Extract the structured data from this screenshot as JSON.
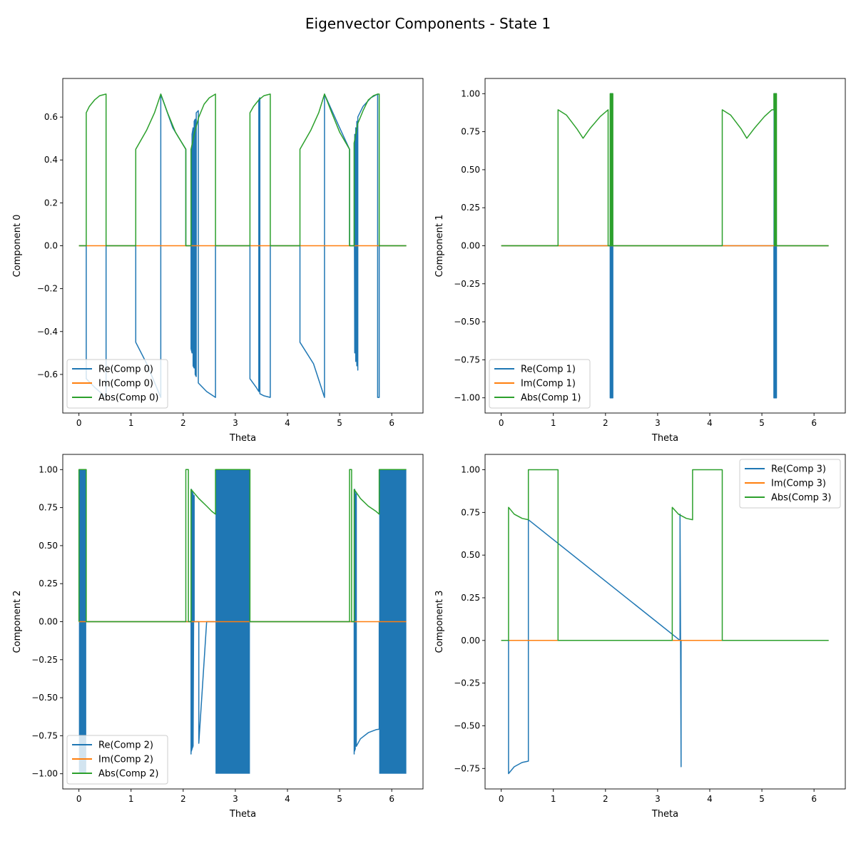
{
  "suptitle": "Eigenvector Components - State 1",
  "colors": {
    "re": "#1f77b4",
    "im": "#ff7f0e",
    "abs": "#2ca02c"
  },
  "chart_data": [
    {
      "type": "line",
      "xlabel": "Theta",
      "ylabel": "Component 0",
      "xlim": [
        -0.31,
        6.6
      ],
      "ylim": [
        -0.78,
        0.78
      ],
      "xticks": [
        0,
        1,
        2,
        3,
        4,
        5,
        6
      ],
      "yticks": [
        -0.6,
        -0.4,
        -0.2,
        0.0,
        0.2,
        0.4,
        0.6
      ],
      "ytick_labels": [
        "−0.6",
        "−0.4",
        "−0.2",
        "0.0",
        "0.2",
        "0.4",
        "0.6"
      ],
      "legend": "lower-left",
      "series": [
        {
          "name": "Re(Comp 0)",
          "color_key": "re",
          "x": [
            0,
            0.14,
            0.14,
            0.3,
            0.52,
            0.52,
            1.09,
            1.09,
            1.3,
            1.57,
            1.57,
            1.8,
            2.05,
            2.05,
            2.15,
            2.15,
            2.15,
            2.17,
            2.17,
            2.19,
            2.19,
            2.21,
            2.21,
            2.23,
            2.23,
            2.25,
            2.25,
            2.29,
            2.29,
            2.45,
            2.62,
            2.62,
            3.28,
            3.28,
            3.4,
            3.45,
            3.45,
            3.47,
            3.47,
            3.55,
            3.67,
            3.67,
            4.24,
            4.24,
            4.5,
            4.71,
            4.71,
            5.0,
            5.19,
            5.19,
            5.28,
            5.28,
            5.29,
            5.29,
            5.31,
            5.31,
            5.33,
            5.33,
            5.35,
            5.35,
            5.45,
            5.6,
            5.73,
            5.73,
            5.76,
            5.76,
            6.28
          ],
          "y": [
            0,
            0,
            -0.62,
            -0.66,
            -0.707,
            0,
            0,
            -0.45,
            -0.55,
            -0.707,
            0.707,
            0.55,
            0.45,
            0,
            0,
            0.45,
            -0.48,
            -0.5,
            0.52,
            0.55,
            -0.56,
            -0.57,
            0.58,
            0.59,
            -0.6,
            -0.61,
            0.62,
            0.63,
            -0.64,
            -0.68,
            -0.707,
            0,
            0,
            -0.62,
            -0.66,
            -0.68,
            0.68,
            0.69,
            -0.69,
            -0.7,
            -0.707,
            0,
            0,
            -0.45,
            -0.55,
            -0.707,
            0.707,
            0.55,
            0.45,
            0,
            0,
            0.48,
            -0.5,
            0.52,
            -0.54,
            0.55,
            -0.56,
            0.58,
            -0.58,
            0.6,
            0.65,
            0.69,
            0.707,
            -0.707,
            -0.707,
            0,
            0
          ]
        },
        {
          "name": "Im(Comp 0)",
          "color_key": "im",
          "x": [
            0,
            6.28
          ],
          "y": [
            0,
            0
          ]
        },
        {
          "name": "Abs(Comp 0)",
          "color_key": "abs",
          "x": [
            0,
            0.14,
            0.14,
            0.2,
            0.3,
            0.4,
            0.52,
            0.52,
            1.09,
            1.09,
            1.3,
            1.45,
            1.57,
            1.7,
            1.85,
            2.05,
            2.05,
            2.15,
            2.15,
            2.22,
            2.3,
            2.4,
            2.5,
            2.62,
            2.62,
            3.28,
            3.28,
            3.35,
            3.45,
            3.55,
            3.67,
            3.67,
            4.24,
            4.24,
            4.45,
            4.6,
            4.71,
            4.85,
            5.0,
            5.19,
            5.19,
            5.28,
            5.28,
            5.35,
            5.45,
            5.55,
            5.65,
            5.73,
            5.76,
            5.76,
            6.28
          ],
          "y": [
            0,
            0,
            0.62,
            0.65,
            0.68,
            0.7,
            0.707,
            0,
            0,
            0.45,
            0.54,
            0.62,
            0.707,
            0.62,
            0.53,
            0.45,
            0,
            0,
            0.45,
            0.53,
            0.6,
            0.66,
            0.69,
            0.707,
            0,
            0,
            0.62,
            0.65,
            0.68,
            0.7,
            0.707,
            0,
            0,
            0.45,
            0.54,
            0.62,
            0.707,
            0.62,
            0.53,
            0.45,
            0,
            0,
            0.48,
            0.57,
            0.63,
            0.68,
            0.7,
            0.707,
            0.707,
            0,
            0
          ]
        }
      ]
    },
    {
      "type": "line",
      "xlabel": "Theta",
      "ylabel": "Component 1",
      "xlim": [
        -0.31,
        6.6
      ],
      "ylim": [
        -1.1,
        1.1
      ],
      "xticks": [
        0,
        1,
        2,
        3,
        4,
        5,
        6
      ],
      "yticks": [
        -1.0,
        -0.75,
        -0.5,
        -0.25,
        0.0,
        0.25,
        0.5,
        0.75,
        1.0
      ],
      "ytick_labels": [
        "−1.00",
        "−0.75",
        "−0.50",
        "−0.25",
        "0.00",
        "0.25",
        "0.50",
        "0.75",
        "1.00"
      ],
      "legend": "lower-left",
      "series": [
        {
          "name": "Re(Comp 1)",
          "color_key": "re",
          "x": [
            0,
            2.09,
            2.09,
            2.095,
            2.1,
            2.105,
            2.11,
            2.115,
            2.12,
            2.125,
            2.13,
            2.135,
            2.14,
            2.14,
            5.23,
            5.23,
            5.235,
            5.24,
            5.245,
            5.25,
            5.255,
            5.26,
            5.265,
            5.27,
            5.275,
            5.28,
            5.28,
            6.28
          ],
          "y": [
            0,
            0,
            -1,
            1,
            -1,
            1,
            -1,
            1,
            -1,
            1,
            -1,
            1,
            -1,
            0,
            0,
            -1,
            1,
            -1,
            1,
            -1,
            1,
            -1,
            1,
            -1,
            1,
            -1,
            0,
            0
          ]
        },
        {
          "name": "Im(Comp 1)",
          "color_key": "im",
          "x": [
            0,
            6.28
          ],
          "y": [
            0,
            0
          ]
        },
        {
          "name": "Abs(Comp 1)",
          "color_key": "abs",
          "x": [
            0,
            1.09,
            1.09,
            1.25,
            1.45,
            1.57,
            1.7,
            1.9,
            2.05,
            2.05,
            2.09,
            2.09,
            2.1,
            2.1,
            2.12,
            2.12,
            2.14,
            2.14,
            4.24,
            4.24,
            4.4,
            4.6,
            4.71,
            4.85,
            5.05,
            5.19,
            5.23,
            5.23,
            5.24,
            5.24,
            5.26,
            5.26,
            5.28,
            5.28,
            6.28
          ],
          "y": [
            0,
            0,
            0.894,
            0.86,
            0.77,
            0.707,
            0.77,
            0.85,
            0.894,
            0,
            0,
            1,
            1,
            0,
            0,
            1,
            1,
            0,
            0,
            0.894,
            0.86,
            0.77,
            0.707,
            0.77,
            0.85,
            0.894,
            0.894,
            1,
            1,
            0,
            0,
            1,
            1,
            0,
            0
          ]
        }
      ]
    },
    {
      "type": "line",
      "xlabel": "Theta",
      "ylabel": "Component 2",
      "xlim": [
        -0.31,
        6.6
      ],
      "ylim": [
        -1.1,
        1.1
      ],
      "xticks": [
        0,
        1,
        2,
        3,
        4,
        5,
        6
      ],
      "yticks": [
        -1.0,
        -0.75,
        -0.5,
        -0.25,
        0.0,
        0.25,
        0.5,
        0.75,
        1.0
      ],
      "ytick_labels": [
        "−1.00",
        "−0.75",
        "−0.50",
        "−0.25",
        "0.00",
        "0.25",
        "0.50",
        "0.75",
        "1.00"
      ],
      "legend": "lower-left",
      "oscillation_bands": [
        {
          "x0": 0.0,
          "x1": 0.14,
          "y0": -1.0,
          "y1": 1.0
        },
        {
          "x0": 2.62,
          "x1": 3.28,
          "y0": -1.0,
          "y1": 1.0
        },
        {
          "x0": 5.76,
          "x1": 6.28,
          "y0": -1.0,
          "y1": 1.0
        }
      ],
      "series": [
        {
          "name": "Re(Comp 2)",
          "color_key": "re",
          "x": [
            0.14,
            2.15,
            2.15,
            2.16,
            2.16,
            2.17,
            2.17,
            2.18,
            2.18,
            2.19,
            2.19,
            2.21,
            2.21,
            2.3,
            2.3,
            2.45,
            2.62,
            2.62,
            3.28,
            3.28,
            5.28,
            5.28,
            5.29,
            5.29,
            5.3,
            5.3,
            5.32,
            5.32,
            5.4,
            5.55,
            5.7,
            5.76,
            5.76
          ],
          "y": [
            0,
            0,
            -0.87,
            0.87,
            -0.85,
            0.86,
            -0.84,
            0.85,
            -0.83,
            0.84,
            -0.82,
            0.83,
            0,
            0,
            -0.8,
            0,
            0,
            0,
            0,
            0,
            0,
            -0.87,
            0.87,
            -0.85,
            0.85,
            -0.84,
            0.84,
            -0.82,
            -0.77,
            -0.73,
            -0.71,
            -0.707,
            0
          ]
        },
        {
          "name": "Im(Comp 2)",
          "color_key": "im",
          "x": [
            0,
            6.28
          ],
          "y": [
            0,
            0
          ]
        },
        {
          "name": "Abs(Comp 2)",
          "color_key": "abs",
          "x": [
            0,
            0,
            0.14,
            0.14,
            2.05,
            2.05,
            2.1,
            2.1,
            2.15,
            2.15,
            2.3,
            2.45,
            2.55,
            2.62,
            2.62,
            3.28,
            3.28,
            5.19,
            5.19,
            5.23,
            5.23,
            5.28,
            5.28,
            5.4,
            5.55,
            5.7,
            5.76,
            5.76,
            6.28
          ],
          "y": [
            0,
            1,
            1,
            0,
            0,
            1,
            1,
            0,
            0,
            0.87,
            0.81,
            0.76,
            0.725,
            0.707,
            1,
            1,
            0,
            0,
            1,
            1,
            0,
            0,
            0.87,
            0.81,
            0.76,
            0.725,
            0.707,
            1,
            1
          ]
        }
      ]
    },
    {
      "type": "line",
      "xlabel": "Theta",
      "ylabel": "Component 3",
      "xlim": [
        -0.31,
        6.6
      ],
      "ylim": [
        -0.87,
        1.09
      ],
      "xticks": [
        0,
        1,
        2,
        3,
        4,
        5,
        6
      ],
      "yticks": [
        -0.75,
        -0.5,
        -0.25,
        0.0,
        0.25,
        0.5,
        0.75,
        1.0
      ],
      "ytick_labels": [
        "−0.75",
        "−0.50",
        "−0.25",
        "0.00",
        "0.25",
        "0.50",
        "0.75",
        "1.00"
      ],
      "legend": "upper-right",
      "series": [
        {
          "name": "Re(Comp 3)",
          "color_key": "re",
          "x": [
            0,
            0.14,
            0.14,
            0.25,
            0.4,
            0.52,
            0.52,
            3.43,
            3.43,
            3.45,
            3.45,
            6.28
          ],
          "y": [
            0,
            0,
            -0.78,
            -0.74,
            -0.715,
            -0.707,
            0.707,
            0,
            0.74,
            -0.74,
            0,
            0
          ]
        },
        {
          "name": "Im(Comp 3)",
          "color_key": "im",
          "x": [
            0,
            6.28
          ],
          "y": [
            0,
            0
          ]
        },
        {
          "name": "Abs(Comp 3)",
          "color_key": "abs",
          "x": [
            0,
            0.14,
            0.14,
            0.25,
            0.4,
            0.52,
            0.52,
            1.09,
            1.09,
            3.28,
            3.28,
            3.4,
            3.55,
            3.67,
            3.67,
            4.24,
            4.24,
            6.28
          ],
          "y": [
            0,
            0,
            0.78,
            0.74,
            0.715,
            0.707,
            1,
            1,
            0,
            0,
            0.78,
            0.74,
            0.715,
            0.707,
            1,
            1,
            0,
            0
          ]
        }
      ]
    }
  ]
}
